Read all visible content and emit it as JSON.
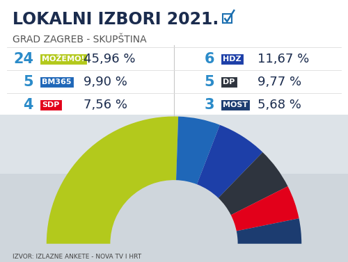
{
  "chart_data": {
    "type": "hemicycle",
    "title": "LOKALNI IZBORI 2021.",
    "subtitle": "GRAD ZAGREB - SKUPŠTINA",
    "categories": [
      "MOŽEMO!",
      "BM365",
      "HDZ",
      "DP",
      "SDP",
      "MOST"
    ],
    "values": [
      24,
      5,
      6,
      5,
      4,
      3
    ],
    "percent": [
      45.96,
      9.9,
      11.67,
      9.77,
      7.56,
      5.68
    ],
    "percent_labels": [
      "45,96 %",
      "9,90 %",
      "11,67 %",
      "9,77 %",
      "7,56 %",
      "5,68 %"
    ],
    "colors": [
      "#b3c91c",
      "#1f67b8",
      "#1d3fa8",
      "#2e343e",
      "#e2001a",
      "#1c3c70"
    ],
    "source": "IZVOR: IZLAZNE ANKETE - NOVA TV I HRT"
  }
}
